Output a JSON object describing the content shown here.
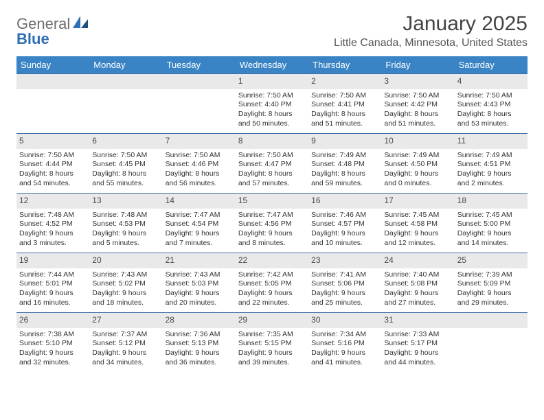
{
  "branding": {
    "logo_text_1": "General",
    "logo_text_2": "Blue",
    "logo_color_gray": "#6d6d6d",
    "logo_color_blue": "#2f6fb3"
  },
  "header": {
    "title": "January 2025",
    "subtitle": "Little Canada, Minnesota, United States"
  },
  "colors": {
    "header_bg": "#3a84c5",
    "daynum_bg": "#e9e9e9",
    "week_border": "#3a6ea5",
    "text": "#333333"
  },
  "day_names": [
    "Sunday",
    "Monday",
    "Tuesday",
    "Wednesday",
    "Thursday",
    "Friday",
    "Saturday"
  ],
  "weeks": [
    [
      {
        "n": "",
        "l1": "",
        "l2": "",
        "l3": "",
        "l4": ""
      },
      {
        "n": "",
        "l1": "",
        "l2": "",
        "l3": "",
        "l4": ""
      },
      {
        "n": "",
        "l1": "",
        "l2": "",
        "l3": "",
        "l4": ""
      },
      {
        "n": "1",
        "l1": "Sunrise: 7:50 AM",
        "l2": "Sunset: 4:40 PM",
        "l3": "Daylight: 8 hours",
        "l4": "and 50 minutes."
      },
      {
        "n": "2",
        "l1": "Sunrise: 7:50 AM",
        "l2": "Sunset: 4:41 PM",
        "l3": "Daylight: 8 hours",
        "l4": "and 51 minutes."
      },
      {
        "n": "3",
        "l1": "Sunrise: 7:50 AM",
        "l2": "Sunset: 4:42 PM",
        "l3": "Daylight: 8 hours",
        "l4": "and 51 minutes."
      },
      {
        "n": "4",
        "l1": "Sunrise: 7:50 AM",
        "l2": "Sunset: 4:43 PM",
        "l3": "Daylight: 8 hours",
        "l4": "and 53 minutes."
      }
    ],
    [
      {
        "n": "5",
        "l1": "Sunrise: 7:50 AM",
        "l2": "Sunset: 4:44 PM",
        "l3": "Daylight: 8 hours",
        "l4": "and 54 minutes."
      },
      {
        "n": "6",
        "l1": "Sunrise: 7:50 AM",
        "l2": "Sunset: 4:45 PM",
        "l3": "Daylight: 8 hours",
        "l4": "and 55 minutes."
      },
      {
        "n": "7",
        "l1": "Sunrise: 7:50 AM",
        "l2": "Sunset: 4:46 PM",
        "l3": "Daylight: 8 hours",
        "l4": "and 56 minutes."
      },
      {
        "n": "8",
        "l1": "Sunrise: 7:50 AM",
        "l2": "Sunset: 4:47 PM",
        "l3": "Daylight: 8 hours",
        "l4": "and 57 minutes."
      },
      {
        "n": "9",
        "l1": "Sunrise: 7:49 AM",
        "l2": "Sunset: 4:48 PM",
        "l3": "Daylight: 8 hours",
        "l4": "and 59 minutes."
      },
      {
        "n": "10",
        "l1": "Sunrise: 7:49 AM",
        "l2": "Sunset: 4:50 PM",
        "l3": "Daylight: 9 hours",
        "l4": "and 0 minutes."
      },
      {
        "n": "11",
        "l1": "Sunrise: 7:49 AM",
        "l2": "Sunset: 4:51 PM",
        "l3": "Daylight: 9 hours",
        "l4": "and 2 minutes."
      }
    ],
    [
      {
        "n": "12",
        "l1": "Sunrise: 7:48 AM",
        "l2": "Sunset: 4:52 PM",
        "l3": "Daylight: 9 hours",
        "l4": "and 3 minutes."
      },
      {
        "n": "13",
        "l1": "Sunrise: 7:48 AM",
        "l2": "Sunset: 4:53 PM",
        "l3": "Daylight: 9 hours",
        "l4": "and 5 minutes."
      },
      {
        "n": "14",
        "l1": "Sunrise: 7:47 AM",
        "l2": "Sunset: 4:54 PM",
        "l3": "Daylight: 9 hours",
        "l4": "and 7 minutes."
      },
      {
        "n": "15",
        "l1": "Sunrise: 7:47 AM",
        "l2": "Sunset: 4:56 PM",
        "l3": "Daylight: 9 hours",
        "l4": "and 8 minutes."
      },
      {
        "n": "16",
        "l1": "Sunrise: 7:46 AM",
        "l2": "Sunset: 4:57 PM",
        "l3": "Daylight: 9 hours",
        "l4": "and 10 minutes."
      },
      {
        "n": "17",
        "l1": "Sunrise: 7:45 AM",
        "l2": "Sunset: 4:58 PM",
        "l3": "Daylight: 9 hours",
        "l4": "and 12 minutes."
      },
      {
        "n": "18",
        "l1": "Sunrise: 7:45 AM",
        "l2": "Sunset: 5:00 PM",
        "l3": "Daylight: 9 hours",
        "l4": "and 14 minutes."
      }
    ],
    [
      {
        "n": "19",
        "l1": "Sunrise: 7:44 AM",
        "l2": "Sunset: 5:01 PM",
        "l3": "Daylight: 9 hours",
        "l4": "and 16 minutes."
      },
      {
        "n": "20",
        "l1": "Sunrise: 7:43 AM",
        "l2": "Sunset: 5:02 PM",
        "l3": "Daylight: 9 hours",
        "l4": "and 18 minutes."
      },
      {
        "n": "21",
        "l1": "Sunrise: 7:43 AM",
        "l2": "Sunset: 5:03 PM",
        "l3": "Daylight: 9 hours",
        "l4": "and 20 minutes."
      },
      {
        "n": "22",
        "l1": "Sunrise: 7:42 AM",
        "l2": "Sunset: 5:05 PM",
        "l3": "Daylight: 9 hours",
        "l4": "and 22 minutes."
      },
      {
        "n": "23",
        "l1": "Sunrise: 7:41 AM",
        "l2": "Sunset: 5:06 PM",
        "l3": "Daylight: 9 hours",
        "l4": "and 25 minutes."
      },
      {
        "n": "24",
        "l1": "Sunrise: 7:40 AM",
        "l2": "Sunset: 5:08 PM",
        "l3": "Daylight: 9 hours",
        "l4": "and 27 minutes."
      },
      {
        "n": "25",
        "l1": "Sunrise: 7:39 AM",
        "l2": "Sunset: 5:09 PM",
        "l3": "Daylight: 9 hours",
        "l4": "and 29 minutes."
      }
    ],
    [
      {
        "n": "26",
        "l1": "Sunrise: 7:38 AM",
        "l2": "Sunset: 5:10 PM",
        "l3": "Daylight: 9 hours",
        "l4": "and 32 minutes."
      },
      {
        "n": "27",
        "l1": "Sunrise: 7:37 AM",
        "l2": "Sunset: 5:12 PM",
        "l3": "Daylight: 9 hours",
        "l4": "and 34 minutes."
      },
      {
        "n": "28",
        "l1": "Sunrise: 7:36 AM",
        "l2": "Sunset: 5:13 PM",
        "l3": "Daylight: 9 hours",
        "l4": "and 36 minutes."
      },
      {
        "n": "29",
        "l1": "Sunrise: 7:35 AM",
        "l2": "Sunset: 5:15 PM",
        "l3": "Daylight: 9 hours",
        "l4": "and 39 minutes."
      },
      {
        "n": "30",
        "l1": "Sunrise: 7:34 AM",
        "l2": "Sunset: 5:16 PM",
        "l3": "Daylight: 9 hours",
        "l4": "and 41 minutes."
      },
      {
        "n": "31",
        "l1": "Sunrise: 7:33 AM",
        "l2": "Sunset: 5:17 PM",
        "l3": "Daylight: 9 hours",
        "l4": "and 44 minutes."
      },
      {
        "n": "",
        "l1": "",
        "l2": "",
        "l3": "",
        "l4": ""
      }
    ]
  ]
}
